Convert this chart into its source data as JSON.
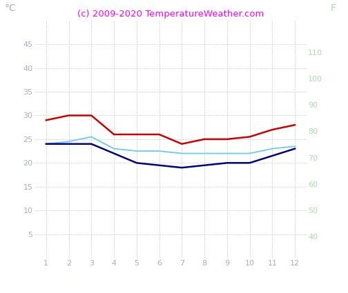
{
  "title": "(c) 2009-2020 TemperatureWeather.com",
  "title_color": "#ff00ff",
  "label_left": "°C",
  "label_right": "F",
  "months": [
    1,
    2,
    3,
    4,
    5,
    6,
    7,
    8,
    9,
    10,
    11,
    12
  ],
  "red_line": [
    29,
    30,
    30,
    26,
    26,
    26,
    24,
    25,
    25,
    25.5,
    27,
    28
  ],
  "cyan_line": [
    24,
    24.5,
    25.5,
    23,
    22.5,
    22.5,
    22,
    22,
    22,
    22,
    23,
    23.5
  ],
  "dark_blue_line": [
    24,
    24,
    24,
    22,
    20,
    19.5,
    19,
    19.5,
    20,
    20,
    21.5,
    23
  ],
  "red_color": "#cc0000",
  "cyan_color": "#66ccee",
  "dark_blue_color": "#000080",
  "ylim_left": [
    0,
    50
  ],
  "ylim_right": [
    32,
    122
  ],
  "yticks_left": [
    5,
    10,
    15,
    20,
    25,
    30,
    35,
    40,
    45
  ],
  "yticks_right": [
    40,
    50,
    60,
    70,
    80,
    90,
    100,
    110
  ],
  "xlim": [
    0.5,
    12.5
  ],
  "bg_color": "#ffffff",
  "grid_color": "#cccccc",
  "tick_color": "#aaaacc",
  "right_tick_color": "#aaddaa",
  "title_fontsize": 9.5,
  "tick_fontsize": 8
}
